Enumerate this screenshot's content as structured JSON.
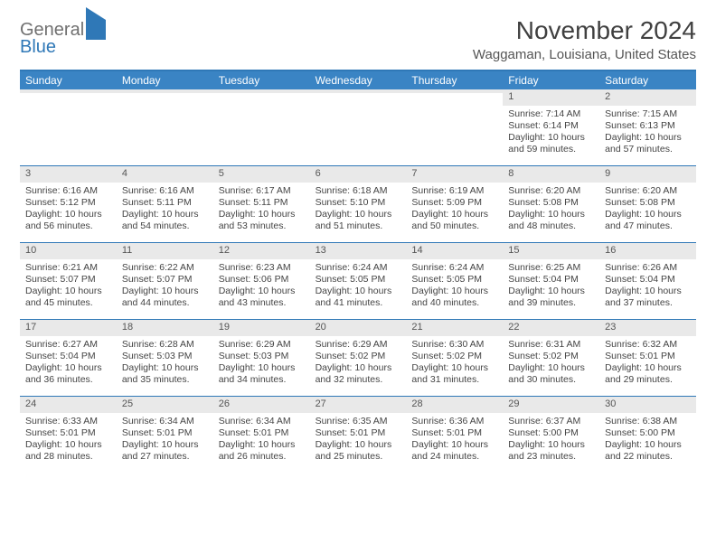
{
  "brand": {
    "line1": "General",
    "line2": "Blue"
  },
  "title": "November 2024",
  "subtitle": "Waggaman, Louisiana, United States",
  "colors": {
    "header_bg": "#3a84c4",
    "header_text": "#ffffff",
    "border": "#2f78b7",
    "daynum_bg": "#e9e9e9",
    "text": "#404040"
  },
  "weekdays": [
    "Sunday",
    "Monday",
    "Tuesday",
    "Wednesday",
    "Thursday",
    "Friday",
    "Saturday"
  ],
  "weeks": [
    [
      {
        "n": "",
        "sunrise": "",
        "sunset": "",
        "daylight": ""
      },
      {
        "n": "",
        "sunrise": "",
        "sunset": "",
        "daylight": ""
      },
      {
        "n": "",
        "sunrise": "",
        "sunset": "",
        "daylight": ""
      },
      {
        "n": "",
        "sunrise": "",
        "sunset": "",
        "daylight": ""
      },
      {
        "n": "",
        "sunrise": "",
        "sunset": "",
        "daylight": ""
      },
      {
        "n": "1",
        "sunrise": "Sunrise: 7:14 AM",
        "sunset": "Sunset: 6:14 PM",
        "daylight": "Daylight: 10 hours and 59 minutes."
      },
      {
        "n": "2",
        "sunrise": "Sunrise: 7:15 AM",
        "sunset": "Sunset: 6:13 PM",
        "daylight": "Daylight: 10 hours and 57 minutes."
      }
    ],
    [
      {
        "n": "3",
        "sunrise": "Sunrise: 6:16 AM",
        "sunset": "Sunset: 5:12 PM",
        "daylight": "Daylight: 10 hours and 56 minutes."
      },
      {
        "n": "4",
        "sunrise": "Sunrise: 6:16 AM",
        "sunset": "Sunset: 5:11 PM",
        "daylight": "Daylight: 10 hours and 54 minutes."
      },
      {
        "n": "5",
        "sunrise": "Sunrise: 6:17 AM",
        "sunset": "Sunset: 5:11 PM",
        "daylight": "Daylight: 10 hours and 53 minutes."
      },
      {
        "n": "6",
        "sunrise": "Sunrise: 6:18 AM",
        "sunset": "Sunset: 5:10 PM",
        "daylight": "Daylight: 10 hours and 51 minutes."
      },
      {
        "n": "7",
        "sunrise": "Sunrise: 6:19 AM",
        "sunset": "Sunset: 5:09 PM",
        "daylight": "Daylight: 10 hours and 50 minutes."
      },
      {
        "n": "8",
        "sunrise": "Sunrise: 6:20 AM",
        "sunset": "Sunset: 5:08 PM",
        "daylight": "Daylight: 10 hours and 48 minutes."
      },
      {
        "n": "9",
        "sunrise": "Sunrise: 6:20 AM",
        "sunset": "Sunset: 5:08 PM",
        "daylight": "Daylight: 10 hours and 47 minutes."
      }
    ],
    [
      {
        "n": "10",
        "sunrise": "Sunrise: 6:21 AM",
        "sunset": "Sunset: 5:07 PM",
        "daylight": "Daylight: 10 hours and 45 minutes."
      },
      {
        "n": "11",
        "sunrise": "Sunrise: 6:22 AM",
        "sunset": "Sunset: 5:07 PM",
        "daylight": "Daylight: 10 hours and 44 minutes."
      },
      {
        "n": "12",
        "sunrise": "Sunrise: 6:23 AM",
        "sunset": "Sunset: 5:06 PM",
        "daylight": "Daylight: 10 hours and 43 minutes."
      },
      {
        "n": "13",
        "sunrise": "Sunrise: 6:24 AM",
        "sunset": "Sunset: 5:05 PM",
        "daylight": "Daylight: 10 hours and 41 minutes."
      },
      {
        "n": "14",
        "sunrise": "Sunrise: 6:24 AM",
        "sunset": "Sunset: 5:05 PM",
        "daylight": "Daylight: 10 hours and 40 minutes."
      },
      {
        "n": "15",
        "sunrise": "Sunrise: 6:25 AM",
        "sunset": "Sunset: 5:04 PM",
        "daylight": "Daylight: 10 hours and 39 minutes."
      },
      {
        "n": "16",
        "sunrise": "Sunrise: 6:26 AM",
        "sunset": "Sunset: 5:04 PM",
        "daylight": "Daylight: 10 hours and 37 minutes."
      }
    ],
    [
      {
        "n": "17",
        "sunrise": "Sunrise: 6:27 AM",
        "sunset": "Sunset: 5:04 PM",
        "daylight": "Daylight: 10 hours and 36 minutes."
      },
      {
        "n": "18",
        "sunrise": "Sunrise: 6:28 AM",
        "sunset": "Sunset: 5:03 PM",
        "daylight": "Daylight: 10 hours and 35 minutes."
      },
      {
        "n": "19",
        "sunrise": "Sunrise: 6:29 AM",
        "sunset": "Sunset: 5:03 PM",
        "daylight": "Daylight: 10 hours and 34 minutes."
      },
      {
        "n": "20",
        "sunrise": "Sunrise: 6:29 AM",
        "sunset": "Sunset: 5:02 PM",
        "daylight": "Daylight: 10 hours and 32 minutes."
      },
      {
        "n": "21",
        "sunrise": "Sunrise: 6:30 AM",
        "sunset": "Sunset: 5:02 PM",
        "daylight": "Daylight: 10 hours and 31 minutes."
      },
      {
        "n": "22",
        "sunrise": "Sunrise: 6:31 AM",
        "sunset": "Sunset: 5:02 PM",
        "daylight": "Daylight: 10 hours and 30 minutes."
      },
      {
        "n": "23",
        "sunrise": "Sunrise: 6:32 AM",
        "sunset": "Sunset: 5:01 PM",
        "daylight": "Daylight: 10 hours and 29 minutes."
      }
    ],
    [
      {
        "n": "24",
        "sunrise": "Sunrise: 6:33 AM",
        "sunset": "Sunset: 5:01 PM",
        "daylight": "Daylight: 10 hours and 28 minutes."
      },
      {
        "n": "25",
        "sunrise": "Sunrise: 6:34 AM",
        "sunset": "Sunset: 5:01 PM",
        "daylight": "Daylight: 10 hours and 27 minutes."
      },
      {
        "n": "26",
        "sunrise": "Sunrise: 6:34 AM",
        "sunset": "Sunset: 5:01 PM",
        "daylight": "Daylight: 10 hours and 26 minutes."
      },
      {
        "n": "27",
        "sunrise": "Sunrise: 6:35 AM",
        "sunset": "Sunset: 5:01 PM",
        "daylight": "Daylight: 10 hours and 25 minutes."
      },
      {
        "n": "28",
        "sunrise": "Sunrise: 6:36 AM",
        "sunset": "Sunset: 5:01 PM",
        "daylight": "Daylight: 10 hours and 24 minutes."
      },
      {
        "n": "29",
        "sunrise": "Sunrise: 6:37 AM",
        "sunset": "Sunset: 5:00 PM",
        "daylight": "Daylight: 10 hours and 23 minutes."
      },
      {
        "n": "30",
        "sunrise": "Sunrise: 6:38 AM",
        "sunset": "Sunset: 5:00 PM",
        "daylight": "Daylight: 10 hours and 22 minutes."
      }
    ]
  ]
}
